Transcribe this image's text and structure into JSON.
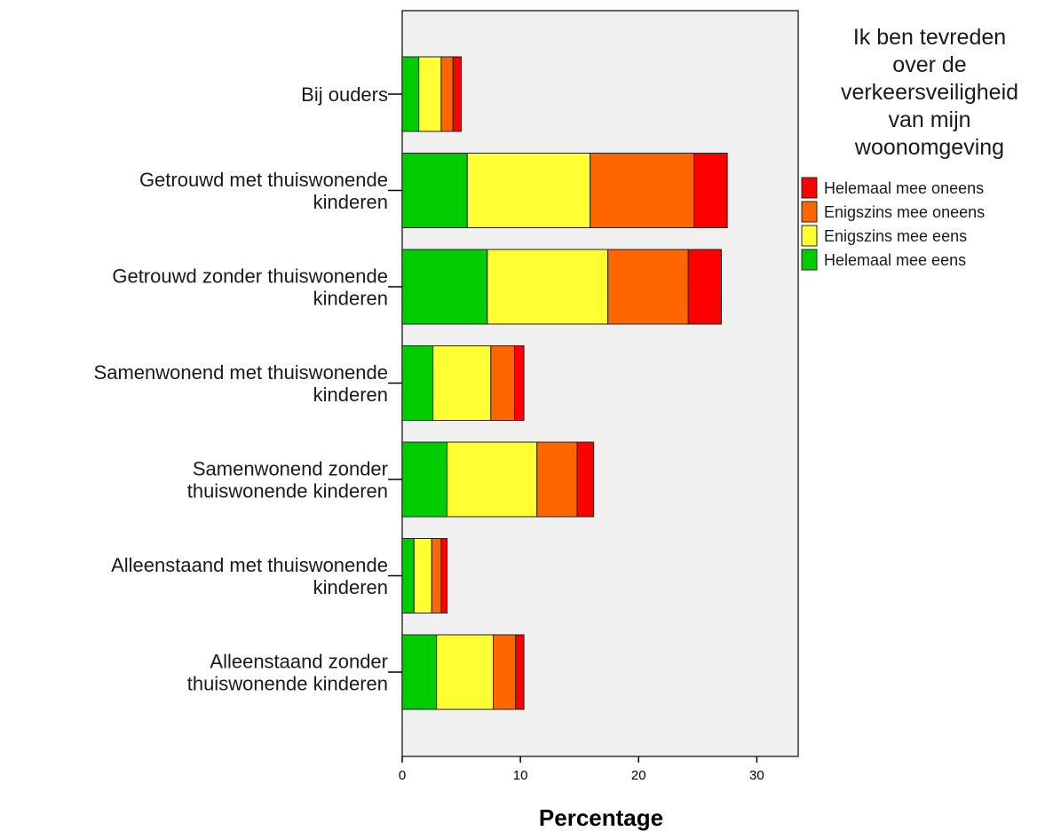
{
  "chart_data": {
    "type": "bar",
    "orientation": "horizontal",
    "stacked": true,
    "categories": [
      [
        "Bij ouders"
      ],
      [
        "Getrouwd met thuiswonende",
        "kinderen"
      ],
      [
        "Getrouwd zonder thuiswonende",
        "kinderen"
      ],
      [
        "Samenwonend met thuiswonende",
        "kinderen"
      ],
      [
        "Samenwonend zonder",
        "thuiswonende kinderen"
      ],
      [
        "Alleenstaand met thuiswonende",
        "kinderen"
      ],
      [
        "Alleenstaand zonder",
        "thuiswonende kinderen"
      ]
    ],
    "series": [
      {
        "name": "Helemaal mee eens",
        "color": "#00cc00",
        "values": [
          1.4,
          5.5,
          7.2,
          2.6,
          3.8,
          1.0,
          2.9
        ]
      },
      {
        "name": "Enigszins mee eens",
        "color": "#ffff33",
        "values": [
          1.9,
          10.4,
          10.2,
          4.9,
          7.6,
          1.5,
          4.8
        ]
      },
      {
        "name": "Enigszins mee oneens",
        "color": "#ff6600",
        "values": [
          1.0,
          8.8,
          6.8,
          2.0,
          3.4,
          0.8,
          1.9
        ]
      },
      {
        "name": "Helemaal mee oneens",
        "color": "#ff0000",
        "values": [
          0.7,
          2.8,
          2.8,
          0.8,
          1.4,
          0.5,
          0.7
        ]
      }
    ],
    "xlabel": "Percentage",
    "ylabel": "",
    "xlim": [
      0,
      33.5
    ],
    "xticks": [
      0,
      10,
      20,
      30
    ],
    "legend_title": [
      "Ik ben tevreden",
      "over de",
      "verkeersveiligheid",
      "van mijn",
      "woonomgeving"
    ],
    "legend_order": [
      "Helemaal mee oneens",
      "Enigszins mee oneens",
      "Enigszins mee eens",
      "Helemaal mee eens"
    ],
    "legend_position": "right",
    "plot_background": "#f0f0f0",
    "grid": false
  }
}
